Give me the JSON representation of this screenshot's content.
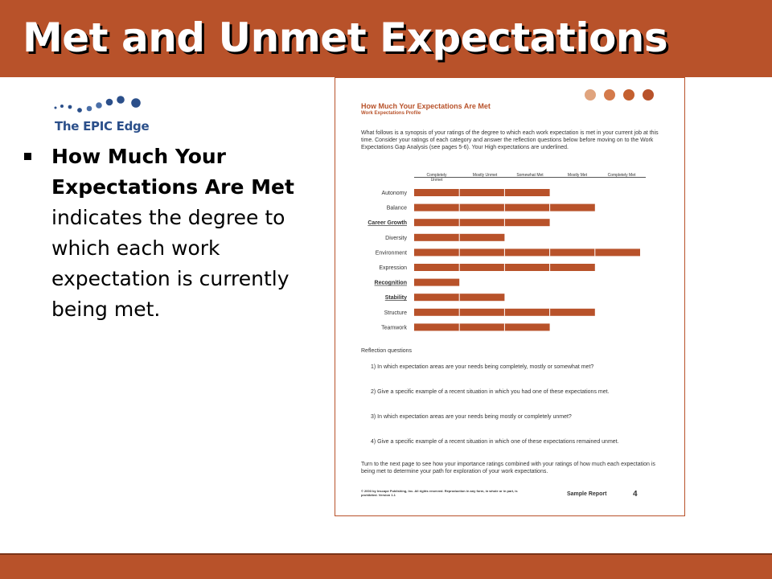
{
  "slide": {
    "title": "Met and Unmet Expectations",
    "logo_text": "The EPIC Edge",
    "bullet_bold": "How Much Your Expectations Are Met",
    "bullet_rest": " indicates the degree to which each work expectation is currently being met."
  },
  "colors": {
    "accent": "#b8522a",
    "logo_blue": "#2b4f8a",
    "dot1": "#e0a47e",
    "dot2": "#d47a4b",
    "dot3": "#c4602f",
    "dot4": "#b8522a"
  },
  "icons": {
    "logo": "dots-arc-icon",
    "bullet": "square-bullet-icon"
  },
  "document": {
    "title": "How Much Your Expectations Are Met",
    "subtitle": "Work Expectations Profile",
    "intro": "What follows is a synopsis of your ratings of the degree to which each work expectation is met in your current job at this time. Consider your ratings of each category and answer the reflection questions below before moving on to the Work Expectations Gap Analysis (see pages 5-6). Your High expectations are underlined.",
    "reflection_heading": "Reflection questions",
    "questions": [
      "1)   In which expectation areas are your needs being completely, mostly or somewhat met?",
      "2)   Give a specific example of a recent situation in which you had one of these expectations met.",
      "3)   In which expectation areas are your needs being mostly or completely unmet?",
      "4)   Give a specific example of a recent situation in which one of these expectations remained unmet."
    ],
    "outro": "Turn to the next page to see how your importance ratings combined with your ratings of how much each expectation is being met to determine your path for exploration of your work expectations.",
    "copyright": "© 2003 by Inscape Publishing, Inc. All rights reserved. Reproduction in any form, in whole or in part, is prohibited. Version 1.1",
    "sample_report": "Sample Report",
    "page_number": "4"
  },
  "chart_data": {
    "type": "bar",
    "orientation": "horizontal",
    "scale_labels": [
      "Completely Unmet",
      "Mostly Unmet",
      "Somewhat Met",
      "Mostly Met",
      "Completely Met"
    ],
    "categories": [
      "Autonomy",
      "Balance",
      "Career Growth",
      "Diversity",
      "Environment",
      "Expression",
      "Recognition",
      "Stability",
      "Structure",
      "Teamwork"
    ],
    "underlined": [
      "Career Growth",
      "Recognition",
      "Stability"
    ],
    "values": [
      3,
      4,
      3,
      2,
      5,
      4,
      1,
      2,
      4,
      3
    ],
    "xlim": [
      0,
      5
    ]
  }
}
